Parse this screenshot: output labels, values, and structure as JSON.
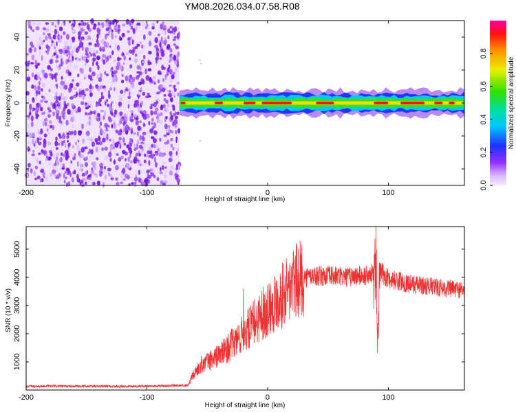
{
  "title": "YM08.2026.034.07.58.R08",
  "chart_data": [
    {
      "type": "heatmap",
      "title": "YM08.2026.034.07.58.R08",
      "xlabel": "Height of straight line (km)",
      "ylabel": "Frequency (Hz)",
      "xlim": [
        -200,
        163
      ],
      "ylim": [
        -50,
        50
      ],
      "xticks": [
        -200,
        -100,
        0,
        100
      ],
      "yticks": [
        -40,
        -20,
        0,
        20,
        40
      ],
      "colorbar": {
        "label": "Normalized spectral amplitude",
        "range": [
          0.0,
          1.0
        ],
        "ticks": [
          0.0,
          0.2,
          0.4,
          0.6,
          0.8
        ],
        "colormap": "rainbow (violet to red)"
      },
      "regions": [
        {
          "name": "noise",
          "x_range": [
            -200,
            -73
          ],
          "y_range": [
            -50,
            50
          ],
          "typical_amplitude": 0.1
        },
        {
          "name": "echo",
          "x_range": [
            -73,
            163
          ],
          "center_frequency": 0,
          "half_width": 3,
          "peak_amplitude": 0.95
        }
      ]
    },
    {
      "type": "line",
      "xlabel": "Height of straight line (km)",
      "ylabel": "SNR (10 * v/v)",
      "xlim": [
        -200,
        163
      ],
      "ylim": [
        0,
        5800
      ],
      "xticks": [
        -200,
        -100,
        0,
        100
      ],
      "yticks": [
        1000,
        2000,
        3000,
        4000,
        5000
      ],
      "line_color": "#ee3333",
      "series": [
        {
          "name": "SNR",
          "x": [
            -200,
            -180,
            -160,
            -140,
            -120,
            -100,
            -80,
            -66,
            -62,
            -55,
            -45,
            -35,
            -25,
            -15,
            -5,
            5,
            15,
            25,
            35,
            45,
            55,
            65,
            75,
            85,
            88,
            90,
            91,
            93,
            100,
            110,
            120,
            130,
            140,
            150,
            163
          ],
          "y": [
            130,
            140,
            130,
            135,
            130,
            140,
            150,
            160,
            500,
            900,
            1100,
            1400,
            1800,
            2200,
            2700,
            3100,
            3500,
            3900,
            4050,
            4050,
            4050,
            4000,
            4050,
            4050,
            4300,
            5000,
            1500,
            4200,
            3950,
            3850,
            3750,
            3700,
            3650,
            3600,
            3550
          ]
        }
      ],
      "spikes": [
        {
          "x": -20,
          "y": 3600
        },
        {
          "x": 92,
          "y": 5800
        },
        {
          "x": 90.5,
          "y": 1500
        }
      ]
    }
  ]
}
